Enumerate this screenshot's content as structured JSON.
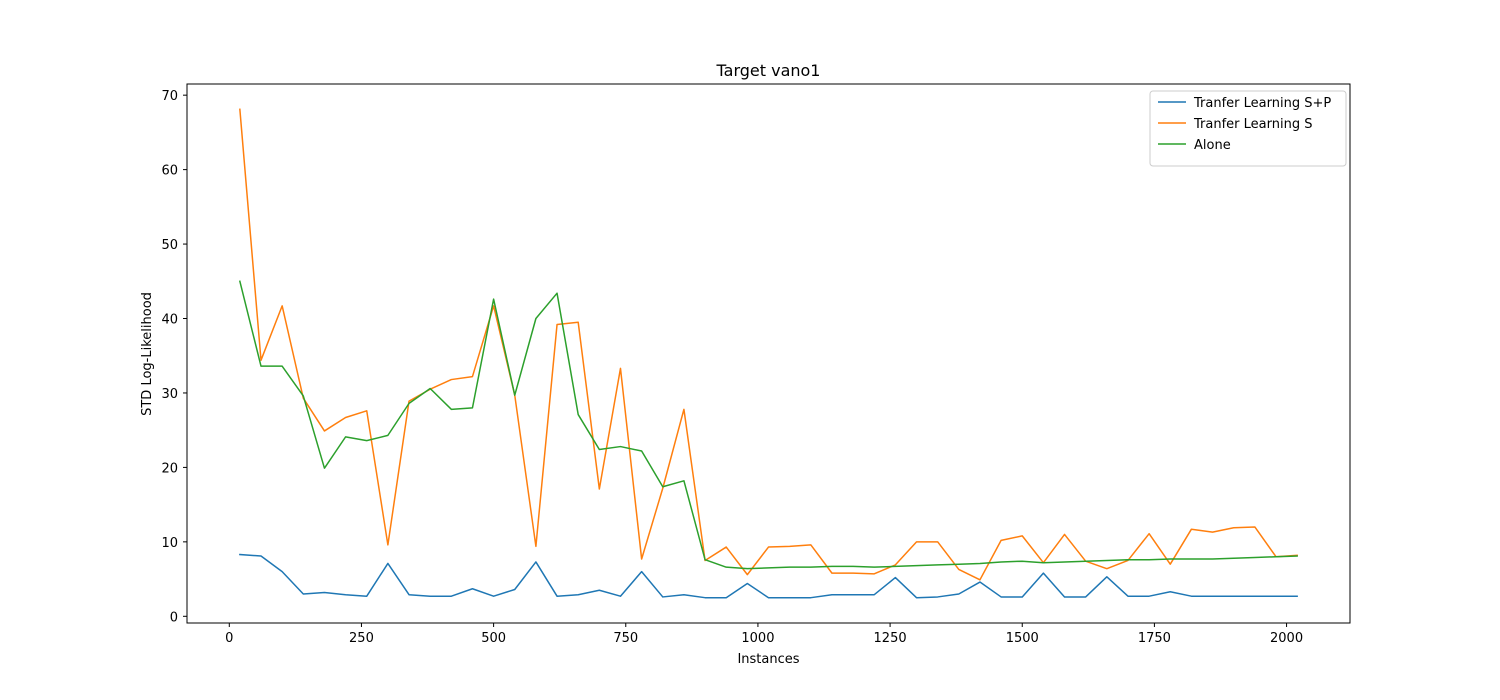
{
  "chart_data": {
    "type": "line",
    "title": "Target vano1",
    "xlabel": "Instances",
    "ylabel": "STD Log-Likelihood",
    "xlim": [
      -80,
      2120
    ],
    "ylim": [
      -0.9,
      71.5
    ],
    "xticks": [
      0,
      250,
      500,
      750,
      1000,
      1250,
      1500,
      1750,
      2000
    ],
    "yticks": [
      0,
      10,
      20,
      30,
      40,
      50,
      60,
      70
    ],
    "grid": false,
    "legend_position": "top-right",
    "x": [
      20,
      60,
      100,
      140,
      180,
      220,
      260,
      300,
      340,
      380,
      420,
      460,
      500,
      540,
      580,
      620,
      660,
      700,
      740,
      780,
      820,
      860,
      900,
      940,
      980,
      1020,
      1060,
      1100,
      1140,
      1180,
      1220,
      1260,
      1300,
      1340,
      1380,
      1420,
      1460,
      1500,
      1540,
      1580,
      1620,
      1660,
      1700,
      1740,
      1780,
      1820,
      1860,
      1900,
      1940,
      1980,
      2020
    ],
    "series": [
      {
        "name": "Tranfer Learning S+P",
        "color": "#1f77b4",
        "values": [
          8.3,
          8.1,
          6.0,
          3.0,
          3.2,
          2.9,
          2.7,
          7.1,
          2.9,
          2.7,
          2.7,
          3.7,
          2.7,
          3.6,
          7.3,
          2.7,
          2.9,
          3.5,
          2.7,
          6.0,
          2.6,
          2.9,
          2.5,
          2.5,
          4.4,
          2.5,
          2.5,
          2.5,
          2.9,
          2.9,
          2.9,
          5.2,
          2.5,
          2.6,
          3.0,
          4.6,
          2.6,
          2.6,
          5.8,
          2.6,
          2.6,
          5.3,
          2.7,
          2.7,
          3.3,
          2.7,
          2.7,
          2.7,
          2.7,
          2.7,
          2.7
        ]
      },
      {
        "name": "Tranfer Learning S",
        "color": "#ff7f0e",
        "values": [
          68.1,
          34.4,
          41.7,
          29.3,
          24.9,
          26.7,
          27.6,
          9.6,
          28.9,
          30.5,
          31.8,
          32.2,
          41.7,
          29.7,
          9.4,
          39.2,
          39.5,
          17.1,
          33.3,
          7.7,
          17.2,
          27.8,
          7.5,
          9.3,
          5.6,
          9.3,
          9.4,
          9.6,
          5.8,
          5.8,
          5.7,
          6.9,
          10.0,
          10.0,
          6.3,
          4.9,
          10.2,
          10.8,
          7.2,
          11.0,
          7.4,
          6.4,
          7.5,
          11.1,
          7.0,
          11.7,
          11.3,
          11.9,
          12.0,
          8.0,
          8.2
        ]
      },
      {
        "name": "Alone",
        "color": "#2ca02c",
        "values": [
          45.0,
          33.6,
          33.6,
          29.6,
          19.9,
          24.1,
          23.6,
          24.3,
          28.6,
          30.6,
          27.8,
          28.0,
          42.6,
          29.7,
          40.0,
          43.4,
          27.1,
          22.4,
          22.8,
          22.2,
          17.4,
          18.2,
          7.6,
          6.6,
          6.4,
          6.5,
          6.6,
          6.6,
          6.7,
          6.7,
          6.6,
          6.7,
          6.8,
          6.9,
          7.0,
          7.1,
          7.3,
          7.4,
          7.2,
          7.3,
          7.4,
          7.5,
          7.6,
          7.6,
          7.7,
          7.7,
          7.7,
          7.8,
          7.9,
          8.0,
          8.1
        ]
      }
    ]
  }
}
